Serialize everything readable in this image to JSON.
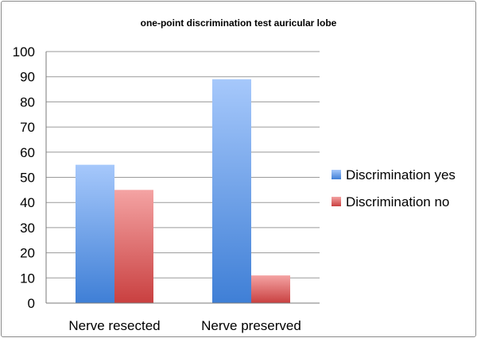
{
  "chart_data": {
    "type": "bar",
    "title": "one-point discrimination test auricular lobe",
    "categories": [
      "Nerve resected",
      "Nerve preserved"
    ],
    "series": [
      {
        "name": "Discrimination yes",
        "values": [
          55,
          89
        ],
        "color_top": "#a6c8fb",
        "color_bottom": "#3f7fd6"
      },
      {
        "name": "Discrimination no",
        "values": [
          45,
          11
        ],
        "color_top": "#f4a3a3",
        "color_bottom": "#c94040"
      }
    ],
    "ylim": [
      0,
      100
    ],
    "yticks": [
      0,
      10,
      20,
      30,
      40,
      50,
      60,
      70,
      80,
      90,
      100
    ],
    "grid": true,
    "legend": "right",
    "xlabel": "",
    "ylabel": ""
  }
}
